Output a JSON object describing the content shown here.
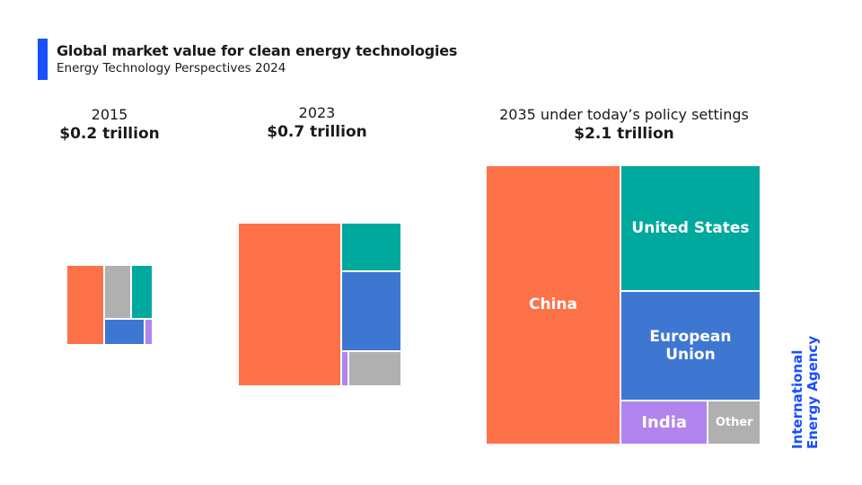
{
  "header": {
    "title": "Global market value for clean energy technologies",
    "subtitle": "Energy Technology Perspectives 2024"
  },
  "logo": {
    "line1": "International",
    "line2": "Energy Agency"
  },
  "colors": {
    "China": "#fd7149",
    "United States": "#00a99d",
    "European Union": "#3e77d1",
    "India": "#b184ee",
    "Other": "#b0b0b0",
    "accent": "#1a4fff"
  },
  "chart_data": {
    "type": "treemap",
    "title": "Global market value for clean energy technologies",
    "subtitle": "Energy Technology Perspectives 2024",
    "unit": "share of total market value (approx.)",
    "panels": [
      {
        "year": "2015",
        "total_label": "$0.2 trillion",
        "total_trillion_usd": 0.2,
        "shares": {
          "China": 0.44,
          "Other": 0.21,
          "United States": 0.17,
          "European Union": 0.15,
          "India": 0.03
        },
        "labels_shown": false
      },
      {
        "year": "2023",
        "total_label": "$0.7 trillion",
        "total_trillion_usd": 0.7,
        "shares": {
          "China": 0.63,
          "United States": 0.11,
          "European Union": 0.18,
          "India": 0.01,
          "Other": 0.07
        },
        "labels_shown": false
      },
      {
        "year": "2035 under today’s policy settings",
        "total_label": "$2.1 trillion",
        "total_trillion_usd": 2.1,
        "shares": {
          "China": 0.49,
          "United States": 0.23,
          "European Union": 0.2,
          "India": 0.05,
          "Other": 0.03
        },
        "labels_shown": true,
        "cell_labels": {
          "China": "China",
          "United States": "United States",
          "European Union": "European Union",
          "India": "India",
          "Other": "Other"
        }
      }
    ]
  }
}
